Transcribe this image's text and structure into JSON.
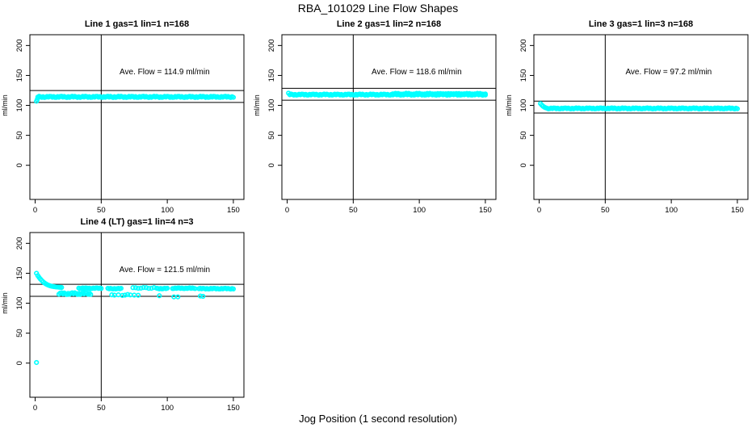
{
  "page": {
    "title": "RBA_101029  Line Flow Shapes",
    "xlabel": "Jog Position (1 second resolution)",
    "point_color": "#00ffff",
    "axis_color": "#000000",
    "background": "#ffffff"
  },
  "chart_data": [
    {
      "type": "scatter",
      "title": "Line 1 gas=1 lin=1 n=168",
      "ave_flow": 114.9,
      "ave_flow_label": "Ave. Flow =  114.9  ml/min",
      "ylabel": "ml/min",
      "xlim": [
        -4,
        158
      ],
      "ylim": [
        -57,
        218
      ],
      "xticks": [
        0,
        50,
        100,
        150
      ],
      "yticks": [
        0,
        50,
        100,
        150,
        200
      ],
      "vline_x": 50,
      "hlines": [
        124.9,
        104.9
      ],
      "bands": [
        {
          "x_from": 2,
          "x_to": 150,
          "step": 1,
          "base": 114.2,
          "wobble": 1.4
        }
      ],
      "points": [
        [
          1,
          107
        ],
        [
          1.6,
          110
        ]
      ],
      "ave_label_pos": [
        98,
        152
      ]
    },
    {
      "type": "scatter",
      "title": "Line 2 gas=1 lin=2 n=168",
      "ave_flow": 118.6,
      "ave_flow_label": "Ave. Flow =  118.6  ml/min",
      "ylabel": "ml/min",
      "xlim": [
        -4,
        158
      ],
      "ylim": [
        -57,
        218
      ],
      "xticks": [
        0,
        50,
        100,
        150
      ],
      "yticks": [
        0,
        50,
        100,
        150,
        200
      ],
      "vline_x": 50,
      "hlines": [
        128.6,
        108.6
      ],
      "bands": [
        {
          "x_from": 2,
          "x_to": 150,
          "step": 1,
          "base": 118.0,
          "wobble": 1.2
        },
        {
          "x_from": 80,
          "x_to": 150,
          "step": 2,
          "base": 119.6,
          "wobble": 0.8
        }
      ],
      "points": [
        [
          1,
          120.5
        ]
      ],
      "ave_label_pos": [
        98,
        152
      ]
    },
    {
      "type": "scatter",
      "title": "Line 3 gas=1 lin=3 n=168",
      "ave_flow": 97.2,
      "ave_flow_label": "Ave. Flow =  97.2  ml/min",
      "ylabel": "ml/min",
      "xlim": [
        -4,
        158
      ],
      "ylim": [
        -57,
        218
      ],
      "xticks": [
        0,
        50,
        100,
        150
      ],
      "yticks": [
        0,
        50,
        100,
        150,
        200
      ],
      "vline_x": 50,
      "hlines": [
        107.2,
        87.2
      ],
      "bands": [
        {
          "x_from": 6,
          "x_to": 150,
          "step": 1,
          "base": 95.0,
          "wobble": 1.1
        }
      ],
      "points": [
        [
          1,
          103
        ],
        [
          2,
          100.5
        ],
        [
          3,
          98.5
        ],
        [
          4,
          97
        ],
        [
          5,
          96
        ]
      ],
      "ave_label_pos": [
        98,
        152
      ]
    },
    {
      "type": "scatter",
      "title": "Line 4 (LT) gas=1 lin=4 n=3",
      "ave_flow": 121.5,
      "ave_flow_label": "Ave. Flow =  121.5  ml/min",
      "ylabel": "ml/min",
      "xlim": [
        -4,
        158
      ],
      "ylim": [
        -57,
        218
      ],
      "xticks": [
        0,
        50,
        100,
        150
      ],
      "yticks": [
        0,
        50,
        100,
        150,
        200
      ],
      "vline_x": 50,
      "hlines": [
        131.5,
        111.5
      ],
      "bands": [
        {
          "x_from": 18,
          "x_to": 42,
          "step": 1,
          "base": 116.0,
          "wobble": 2.0
        },
        {
          "x_from": 33,
          "x_to": 50,
          "step": 1,
          "base": 125.0,
          "wobble": 0.8
        },
        {
          "x_from": 55,
          "x_to": 65,
          "step": 1,
          "base": 124.3,
          "wobble": 0.8
        },
        {
          "x_from": 74,
          "x_to": 90,
          "step": 2,
          "base": 125.5,
          "wobble": 0.9
        },
        {
          "x_from": 92,
          "x_to": 100,
          "step": 1,
          "base": 124.5,
          "wobble": 0.8
        },
        {
          "x_from": 104,
          "x_to": 121,
          "step": 1,
          "base": 125.0,
          "wobble": 0.8
        },
        {
          "x_from": 124,
          "x_to": 150,
          "step": 1,
          "base": 124.3,
          "wobble": 0.9
        }
      ],
      "points": [
        [
          1,
          150
        ],
        [
          2,
          146
        ],
        [
          3,
          143
        ],
        [
          4,
          140.2
        ],
        [
          5,
          137.8
        ],
        [
          6,
          135.7
        ],
        [
          7,
          133.9
        ],
        [
          8,
          132.4
        ],
        [
          9,
          131.1
        ],
        [
          10,
          130.1
        ],
        [
          11,
          129.3
        ],
        [
          12,
          128.6
        ],
        [
          13,
          128.1
        ],
        [
          14,
          127.7
        ],
        [
          15,
          127.4
        ],
        [
          16,
          127.1
        ],
        [
          17,
          126.9
        ],
        [
          18,
          126.7
        ],
        [
          19,
          126.5
        ],
        [
          20,
          126.3
        ],
        [
          58,
          114
        ],
        [
          60,
          113.5
        ],
        [
          63,
          114
        ],
        [
          66,
          113
        ],
        [
          68,
          113.5
        ],
        [
          70,
          114.5
        ],
        [
          72,
          113.8
        ],
        [
          75,
          113.5
        ],
        [
          78,
          113.2
        ],
        [
          94,
          112.5
        ],
        [
          105,
          110.5
        ],
        [
          108,
          110.5
        ],
        [
          125,
          112
        ],
        [
          127,
          111.5
        ],
        [
          1,
          1
        ]
      ],
      "ave_label_pos": [
        98,
        152
      ]
    }
  ]
}
